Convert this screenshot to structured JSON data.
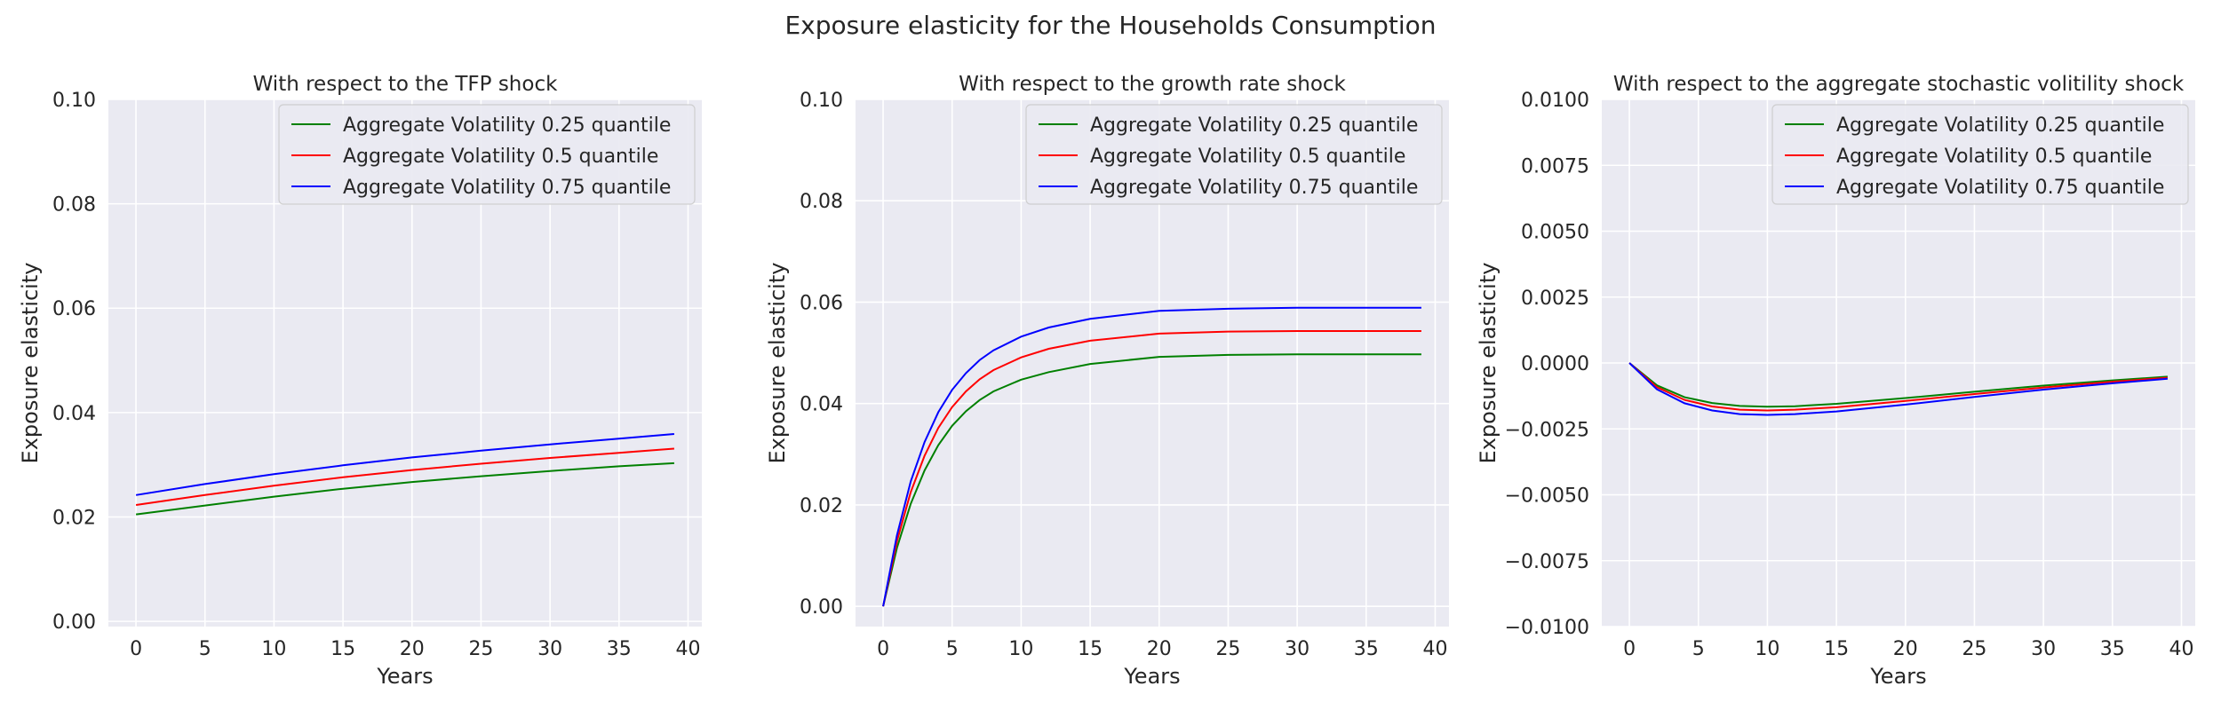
{
  "figure": {
    "title": "Exposure elasticity for the Households Consumption"
  },
  "colors": {
    "q25": "#008000",
    "q50": "#ff0000",
    "q75": "#0000ff",
    "panel_bg": "#eaeaf2",
    "grid": "#ffffff"
  },
  "chart_data": [
    {
      "type": "line",
      "title": "With respect to the TFP shock",
      "xlabel": "Years",
      "ylabel": "Exposure elasticity",
      "xlim": [
        -2,
        41
      ],
      "ylim": [
        -0.001,
        0.1
      ],
      "xticks": [
        0,
        5,
        10,
        15,
        20,
        25,
        30,
        35,
        40
      ],
      "xtick_labels": [
        "0",
        "5",
        "10",
        "15",
        "20",
        "25",
        "30",
        "35",
        "40"
      ],
      "yticks": [
        0,
        0.02,
        0.04,
        0.06,
        0.08,
        0.1
      ],
      "ytick_labels": [
        "0.00",
        "0.02",
        "0.04",
        "0.06",
        "0.08",
        "0.10"
      ],
      "grid": true,
      "legend_position": "top-right",
      "x": [
        0,
        5,
        10,
        15,
        20,
        25,
        30,
        35,
        39
      ],
      "series": [
        {
          "name": "Aggregate Volatility 0.25 quantile",
          "color": "#008000",
          "values": [
            0.0205,
            0.0222,
            0.0239,
            0.0254,
            0.0267,
            0.0278,
            0.0288,
            0.0297,
            0.0303
          ]
        },
        {
          "name": "Aggregate Volatility 0.5 quantile",
          "color": "#ff0000",
          "values": [
            0.0223,
            0.0242,
            0.026,
            0.0276,
            0.029,
            0.0302,
            0.0313,
            0.0323,
            0.0331
          ]
        },
        {
          "name": "Aggregate Volatility 0.75 quantile",
          "color": "#0000ff",
          "values": [
            0.0242,
            0.0263,
            0.0282,
            0.0299,
            0.0314,
            0.0327,
            0.0339,
            0.035,
            0.0359
          ]
        }
      ]
    },
    {
      "type": "line",
      "title": "With respect to the growth rate shock",
      "xlabel": "Years",
      "ylabel": "Exposure elasticity",
      "xlim": [
        -2,
        41
      ],
      "ylim": [
        -0.004,
        0.1
      ],
      "xticks": [
        0,
        5,
        10,
        15,
        20,
        25,
        30,
        35,
        40
      ],
      "xtick_labels": [
        "0",
        "5",
        "10",
        "15",
        "20",
        "25",
        "30",
        "35",
        "40"
      ],
      "yticks": [
        0,
        0.02,
        0.04,
        0.06,
        0.08,
        0.1
      ],
      "ytick_labels": [
        "0.00",
        "0.02",
        "0.04",
        "0.06",
        "0.08",
        "0.10"
      ],
      "grid": true,
      "legend_position": "top-right",
      "x": [
        0,
        1,
        2,
        3,
        4,
        5,
        6,
        7,
        8,
        10,
        12,
        15,
        20,
        25,
        30,
        35,
        39
      ],
      "series": [
        {
          "name": "Aggregate Volatility 0.25 quantile",
          "color": "#008000",
          "values": [
            0,
            0.0115,
            0.0202,
            0.0268,
            0.0318,
            0.0356,
            0.0385,
            0.0407,
            0.0424,
            0.0447,
            0.0462,
            0.0478,
            0.0492,
            0.0496,
            0.0497,
            0.0497,
            0.0497
          ]
        },
        {
          "name": "Aggregate Volatility 0.5 quantile",
          "color": "#ff0000",
          "values": [
            0,
            0.0128,
            0.0225,
            0.0297,
            0.0352,
            0.0393,
            0.0424,
            0.0448,
            0.0466,
            0.0491,
            0.0508,
            0.0524,
            0.0538,
            0.0542,
            0.0543,
            0.0543,
            0.0543
          ]
        },
        {
          "name": "Aggregate Volatility 0.75 quantile",
          "color": "#0000ff",
          "values": [
            0,
            0.014,
            0.0246,
            0.0324,
            0.0383,
            0.0427,
            0.046,
            0.0486,
            0.0505,
            0.0532,
            0.055,
            0.0567,
            0.0583,
            0.0587,
            0.0589,
            0.0589,
            0.0589
          ]
        }
      ]
    },
    {
      "type": "line",
      "title": "With respect to the aggregate stochastic volitility shock",
      "xlabel": "Years",
      "ylabel": "Exposure elasticity",
      "xlim": [
        -2,
        41
      ],
      "ylim": [
        -0.01,
        0.01
      ],
      "xticks": [
        0,
        5,
        10,
        15,
        20,
        25,
        30,
        35,
        40
      ],
      "xtick_labels": [
        "0",
        "5",
        "10",
        "15",
        "20",
        "25",
        "30",
        "35",
        "40"
      ],
      "yticks": [
        -0.01,
        -0.0075,
        -0.005,
        -0.0025,
        0,
        0.0025,
        0.005,
        0.0075,
        0.01
      ],
      "ytick_labels": [
        "−0.0100",
        "−0.0075",
        "−0.0050",
        "−0.0025",
        "0.0000",
        "0.0025",
        "0.0050",
        "0.0075",
        "0.0100"
      ],
      "grid": true,
      "legend_position": "top-right",
      "x": [
        0,
        2,
        4,
        6,
        8,
        10,
        12,
        15,
        20,
        25,
        30,
        35,
        39
      ],
      "series": [
        {
          "name": "Aggregate Volatility 0.25 quantile",
          "color": "#008000",
          "values": [
            0,
            -0.00085,
            -0.0013,
            -0.00152,
            -0.00163,
            -0.00166,
            -0.00164,
            -0.00155,
            -0.00133,
            -0.00109,
            -0.00086,
            -0.00066,
            -0.00052
          ]
        },
        {
          "name": "Aggregate Volatility 0.5 quantile",
          "color": "#ff0000",
          "values": [
            0,
            -0.00092,
            -0.0014,
            -0.00165,
            -0.00177,
            -0.0018,
            -0.00177,
            -0.00168,
            -0.00144,
            -0.00118,
            -0.00093,
            -0.00071,
            -0.00056
          ]
        },
        {
          "name": "Aggregate Volatility 0.75 quantile",
          "color": "#0000ff",
          "values": [
            0,
            -0.001,
            -0.00153,
            -0.0018,
            -0.00194,
            -0.00197,
            -0.00194,
            -0.00184,
            -0.00158,
            -0.00129,
            -0.00101,
            -0.00077,
            -0.0006
          ]
        }
      ]
    }
  ]
}
